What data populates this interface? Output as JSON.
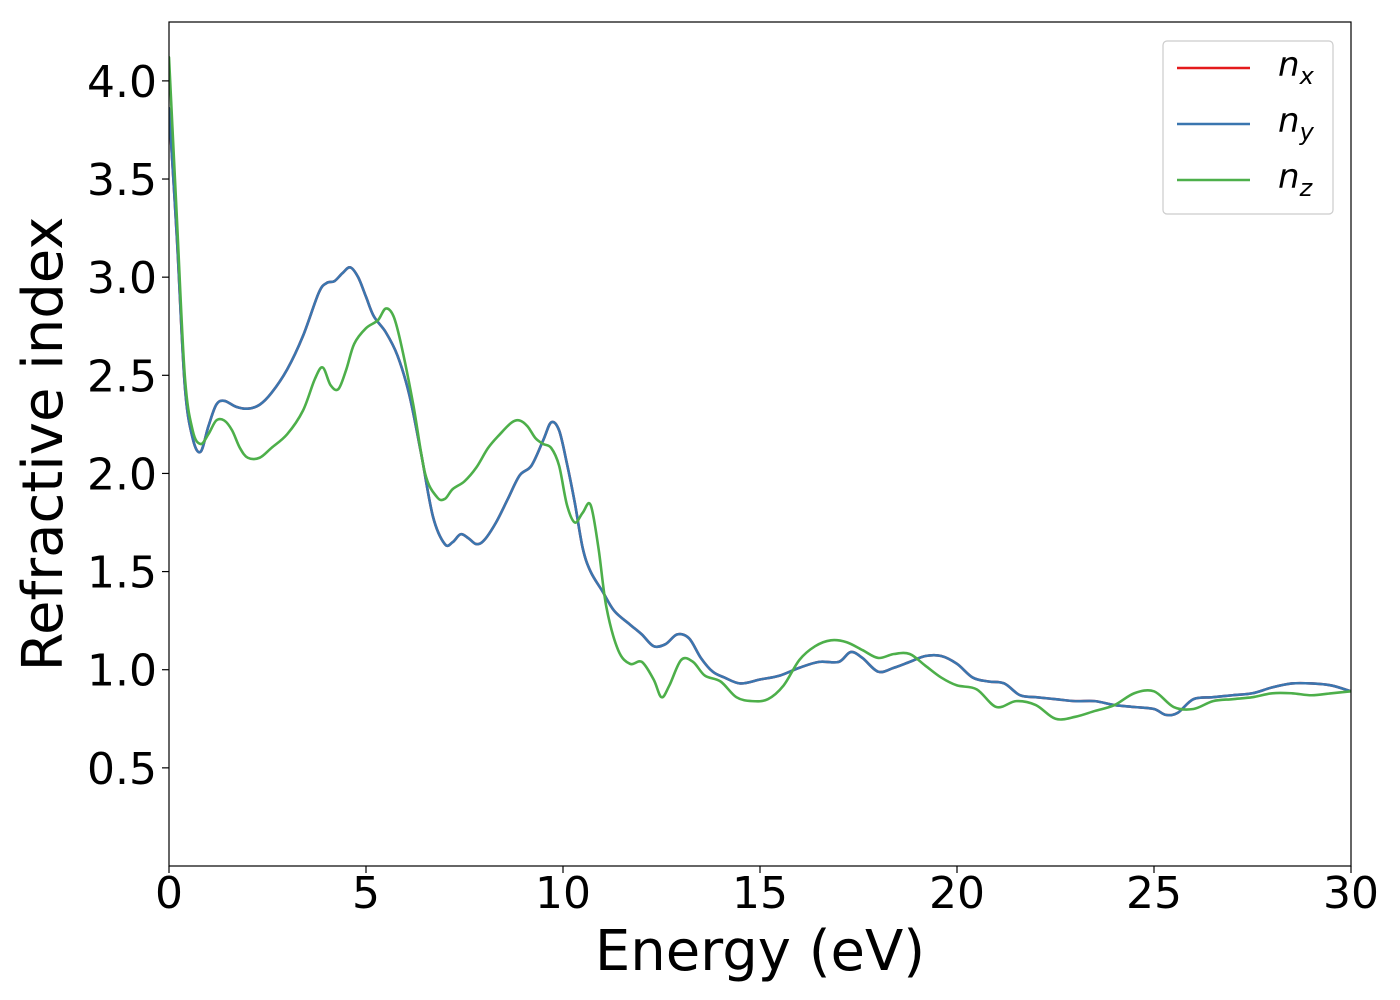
{
  "chart_data": {
    "type": "line",
    "title": "",
    "xlabel": "Energy (eV)",
    "ylabel": "Refractive index",
    "xlim": [
      0,
      30
    ],
    "ylim": [
      0,
      4.3
    ],
    "xticks": [
      0,
      5,
      10,
      15,
      20,
      25,
      30
    ],
    "yticks": [
      0.5,
      1.0,
      1.5,
      2.0,
      2.5,
      3.0,
      3.5,
      4.0
    ],
    "xtick_labels": [
      "0",
      "5",
      "10",
      "15",
      "20",
      "25",
      "30"
    ],
    "ytick_labels": [
      "0.5",
      "1.0",
      "1.5",
      "2.0",
      "2.5",
      "3.0",
      "3.5",
      "4.0"
    ],
    "grid": false,
    "legend_position": "top-right",
    "series": [
      {
        "name": "n_x",
        "legend_base": "n",
        "legend_sub": "x",
        "color": "#e41a1c",
        "x": [
          0.0,
          0.2,
          0.4,
          0.6,
          0.8,
          1.0,
          1.2,
          1.4,
          1.7,
          2.0,
          2.3,
          2.6,
          3.0,
          3.4,
          3.8,
          4.0,
          4.2,
          4.4,
          4.6,
          4.8,
          5.0,
          5.2,
          5.5,
          5.8,
          6.1,
          6.4,
          6.7,
          7.0,
          7.2,
          7.4,
          7.6,
          7.8,
          8.0,
          8.3,
          8.6,
          8.9,
          9.2,
          9.5,
          9.7,
          9.9,
          10.1,
          10.3,
          10.5,
          10.7,
          11.0,
          11.3,
          11.7,
          12.0,
          12.3,
          12.6,
          12.9,
          13.2,
          13.5,
          13.8,
          14.1,
          14.5,
          15.0,
          15.5,
          16.0,
          16.5,
          17.0,
          17.3,
          17.6,
          18.0,
          18.4,
          18.8,
          19.2,
          19.6,
          20.0,
          20.4,
          20.8,
          21.2,
          21.6,
          22.0,
          22.5,
          23.0,
          23.5,
          24.0,
          24.5,
          25.0,
          25.3,
          25.6,
          26.0,
          26.5,
          27.0,
          27.5,
          28.0,
          28.5,
          29.0,
          29.5,
          30.0
        ],
        "y": [
          3.86,
          3.2,
          2.45,
          2.18,
          2.11,
          2.24,
          2.35,
          2.37,
          2.34,
          2.33,
          2.35,
          2.41,
          2.53,
          2.7,
          2.92,
          2.97,
          2.98,
          3.02,
          3.05,
          3.0,
          2.9,
          2.8,
          2.72,
          2.6,
          2.4,
          2.1,
          1.78,
          1.64,
          1.65,
          1.69,
          1.67,
          1.64,
          1.66,
          1.75,
          1.87,
          1.99,
          2.04,
          2.17,
          2.26,
          2.22,
          2.05,
          1.85,
          1.62,
          1.5,
          1.4,
          1.3,
          1.23,
          1.18,
          1.12,
          1.13,
          1.18,
          1.16,
          1.06,
          0.99,
          0.96,
          0.93,
          0.95,
          0.97,
          1.01,
          1.04,
          1.04,
          1.09,
          1.06,
          0.99,
          1.01,
          1.04,
          1.07,
          1.07,
          1.03,
          0.96,
          0.94,
          0.93,
          0.87,
          0.86,
          0.85,
          0.84,
          0.84,
          0.82,
          0.81,
          0.8,
          0.77,
          0.78,
          0.85,
          0.86,
          0.87,
          0.88,
          0.91,
          0.93,
          0.93,
          0.92,
          0.89
        ]
      },
      {
        "name": "n_y",
        "legend_base": "n",
        "legend_sub": "y",
        "color": "#3a76af",
        "x": [
          0.0,
          0.2,
          0.4,
          0.6,
          0.8,
          1.0,
          1.2,
          1.4,
          1.7,
          2.0,
          2.3,
          2.6,
          3.0,
          3.4,
          3.8,
          4.0,
          4.2,
          4.4,
          4.6,
          4.8,
          5.0,
          5.2,
          5.5,
          5.8,
          6.1,
          6.4,
          6.7,
          7.0,
          7.2,
          7.4,
          7.6,
          7.8,
          8.0,
          8.3,
          8.6,
          8.9,
          9.2,
          9.5,
          9.7,
          9.9,
          10.1,
          10.3,
          10.5,
          10.7,
          11.0,
          11.3,
          11.7,
          12.0,
          12.3,
          12.6,
          12.9,
          13.2,
          13.5,
          13.8,
          14.1,
          14.5,
          15.0,
          15.5,
          16.0,
          16.5,
          17.0,
          17.3,
          17.6,
          18.0,
          18.4,
          18.8,
          19.2,
          19.6,
          20.0,
          20.4,
          20.8,
          21.2,
          21.6,
          22.0,
          22.5,
          23.0,
          23.5,
          24.0,
          24.5,
          25.0,
          25.3,
          25.6,
          26.0,
          26.5,
          27.0,
          27.5,
          28.0,
          28.5,
          29.0,
          29.5,
          30.0
        ],
        "y": [
          3.86,
          3.2,
          2.45,
          2.18,
          2.11,
          2.24,
          2.35,
          2.37,
          2.34,
          2.33,
          2.35,
          2.41,
          2.53,
          2.7,
          2.92,
          2.97,
          2.98,
          3.02,
          3.05,
          3.0,
          2.9,
          2.8,
          2.72,
          2.6,
          2.4,
          2.1,
          1.78,
          1.64,
          1.65,
          1.69,
          1.67,
          1.64,
          1.66,
          1.75,
          1.87,
          1.99,
          2.04,
          2.17,
          2.26,
          2.22,
          2.05,
          1.85,
          1.62,
          1.5,
          1.4,
          1.3,
          1.23,
          1.18,
          1.12,
          1.13,
          1.18,
          1.16,
          1.06,
          0.99,
          0.96,
          0.93,
          0.95,
          0.97,
          1.01,
          1.04,
          1.04,
          1.09,
          1.06,
          0.99,
          1.01,
          1.04,
          1.07,
          1.07,
          1.03,
          0.96,
          0.94,
          0.93,
          0.87,
          0.86,
          0.85,
          0.84,
          0.84,
          0.82,
          0.81,
          0.8,
          0.77,
          0.78,
          0.85,
          0.86,
          0.87,
          0.88,
          0.91,
          0.93,
          0.93,
          0.92,
          0.89
        ]
      },
      {
        "name": "n_z",
        "legend_base": "n",
        "legend_sub": "z",
        "color": "#4daf4a",
        "x": [
          0.0,
          0.2,
          0.4,
          0.6,
          0.8,
          1.0,
          1.2,
          1.4,
          1.6,
          1.8,
          2.0,
          2.3,
          2.6,
          3.0,
          3.4,
          3.7,
          3.9,
          4.1,
          4.3,
          4.5,
          4.7,
          5.0,
          5.3,
          5.5,
          5.7,
          5.9,
          6.2,
          6.5,
          6.8,
          7.0,
          7.2,
          7.5,
          7.8,
          8.1,
          8.4,
          8.7,
          8.9,
          9.1,
          9.3,
          9.5,
          9.7,
          9.9,
          10.1,
          10.3,
          10.5,
          10.7,
          10.9,
          11.1,
          11.4,
          11.7,
          12.0,
          12.3,
          12.5,
          12.7,
          13.0,
          13.3,
          13.6,
          14.0,
          14.4,
          14.8,
          15.2,
          15.6,
          16.0,
          16.4,
          16.8,
          17.2,
          17.6,
          18.0,
          18.4,
          18.8,
          19.2,
          19.6,
          20.0,
          20.5,
          21.0,
          21.5,
          22.0,
          22.5,
          23.0,
          23.5,
          24.0,
          24.5,
          25.0,
          25.5,
          26.0,
          26.5,
          27.0,
          27.5,
          28.0,
          28.5,
          29.0,
          29.5,
          30.0
        ],
        "y": [
          4.12,
          3.3,
          2.5,
          2.22,
          2.15,
          2.2,
          2.27,
          2.27,
          2.22,
          2.13,
          2.08,
          2.08,
          2.13,
          2.2,
          2.32,
          2.48,
          2.54,
          2.45,
          2.43,
          2.53,
          2.66,
          2.74,
          2.78,
          2.84,
          2.8,
          2.65,
          2.35,
          2.0,
          1.88,
          1.87,
          1.92,
          1.96,
          2.03,
          2.13,
          2.2,
          2.26,
          2.27,
          2.24,
          2.18,
          2.15,
          2.13,
          2.04,
          1.84,
          1.75,
          1.8,
          1.84,
          1.62,
          1.32,
          1.1,
          1.03,
          1.04,
          0.95,
          0.86,
          0.92,
          1.05,
          1.04,
          0.97,
          0.94,
          0.86,
          0.84,
          0.85,
          0.92,
          1.05,
          1.12,
          1.15,
          1.14,
          1.1,
          1.06,
          1.08,
          1.08,
          1.02,
          0.96,
          0.92,
          0.9,
          0.81,
          0.84,
          0.82,
          0.75,
          0.76,
          0.79,
          0.82,
          0.88,
          0.89,
          0.81,
          0.8,
          0.84,
          0.85,
          0.86,
          0.88,
          0.88,
          0.87,
          0.88,
          0.89
        ]
      }
    ]
  }
}
